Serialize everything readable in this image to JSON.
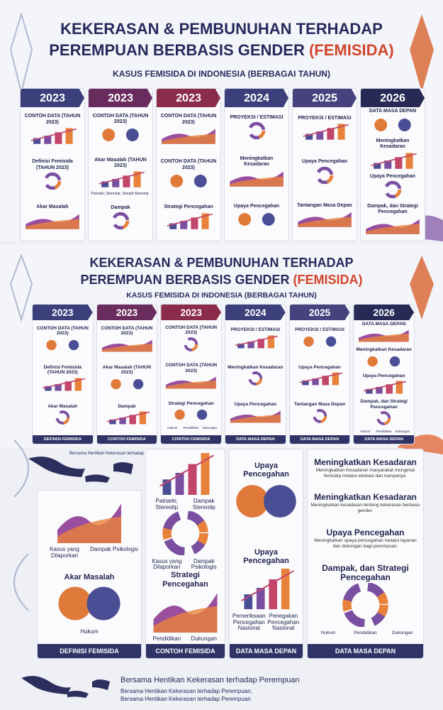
{
  "sections": [
    {
      "title_line1": "KEKERASAN & PEMBUNUHAN TERHADAP",
      "title_line2": "PEREMPUAN BERBASIS GENDER",
      "title_highlight": "(FEMISIDA)",
      "subtitle": "KASUS FEMISIDA DI INDONESIA (BERBAGAI TAHUN)",
      "columns": [
        {
          "year": "2023",
          "blocks": [
            {
              "heading": "CONTOH DATA (TAHUN 2023)"
            },
            {
              "heading": "Definisi Femisida (TAHUN 2023)"
            },
            {
              "heading": "Akar Masalah"
            }
          ]
        },
        {
          "year": "2023",
          "blocks": [
            {
              "heading": "CONTOH DATA (TAHUN 2023)"
            },
            {
              "heading": "Akar Masalah (TAHUN 2023)",
              "labels": [
                "Patriarki, Stereotip",
                "Sempit Stereotip"
              ]
            },
            {
              "heading": "Dampak"
            }
          ]
        },
        {
          "year": "2023",
          "blocks": [
            {
              "heading": "CONTOH DATA (TAHUN 2023)"
            },
            {
              "heading": "CONTOH DATA (TAHUN 2023)"
            },
            {
              "heading": "Strategi Pencegahan"
            }
          ]
        },
        {
          "year": "2024",
          "blocks": [
            {
              "heading": "PROYEKSI / ESTIMASI"
            },
            {
              "heading": "Meningkatkan Kesadaran"
            },
            {
              "heading": "Upaya Pencegahan"
            }
          ]
        },
        {
          "year": "2025",
          "blocks": [
            {
              "heading": "PROYEKSI / ESTIMASI"
            },
            {
              "heading": "Upaya Pencegahan"
            },
            {
              "heading": "Tantangan Masa Depan"
            }
          ]
        },
        {
          "year": "2026",
          "blocks": [
            {
              "heading": "DATA MASA DEPAN"
            },
            {
              "heading": "Meningkatkan Kesadaran"
            },
            {
              "heading": "Upaya Pencegahan"
            },
            {
              "heading": "Dampak, dan Strategi Pencegahan"
            }
          ]
        }
      ]
    },
    {
      "title_line1": "KEKERASAN & PEMBUNUHAN TERHADAP",
      "title_line2": "PEREMPUAN BERBASIS GENDER",
      "title_highlight": "(FEMISIDA)",
      "subtitle": "KASUS FEMISIDA DI INDONESIA (BERBAGAI TAHUN)",
      "columns": [
        {
          "year": "2023",
          "footer": "DEFINISI FEMISIDA",
          "blocks": [
            {
              "heading": "CONTOH DATA (TAHUN 2023)"
            },
            {
              "heading": "Definisi Femisida (TAHUN 2023)"
            },
            {
              "heading": "Akar Masalah"
            }
          ]
        },
        {
          "year": "2023",
          "footer": "CONTOH FEMISIDA",
          "blocks": [
            {
              "heading": "CONTOH DATA (TAHUN 2023)"
            },
            {
              "heading": "Akar Masalah (TAHUN 2023)"
            },
            {
              "heading": "Dampak"
            }
          ]
        },
        {
          "year": "2023",
          "footer": "CONTOH FEMISIDA",
          "blocks": [
            {
              "heading": "CONTOH DATA (TAHUN 2023)"
            },
            {
              "heading": "CONTOH DATA (TAHUN 2023)"
            },
            {
              "heading": "Strategi Pencegahan",
              "labels": [
                "Hukum",
                "Pendidikan",
                "Dukungan"
              ]
            }
          ]
        },
        {
          "year": "2024",
          "footer": "DATA MASA DEPAN",
          "blocks": [
            {
              "heading": "PROYEKSI / ESTIMASI"
            },
            {
              "heading": "Meningkatkan Kesadaran"
            },
            {
              "heading": "Upaya Pencegahan"
            }
          ]
        },
        {
          "year": "2025",
          "footer": "DATA MASA DEPAN",
          "blocks": [
            {
              "heading": "PROYEKSI / ESTIMASI"
            },
            {
              "heading": "Upaya Pencegahan"
            },
            {
              "heading": "Tantangan Masa Depan"
            }
          ]
        },
        {
          "year": "2026",
          "footer": "DATA MASA DEPAN",
          "blocks": [
            {
              "heading": "DATA MASA DEPAN"
            },
            {
              "heading": "Meningkatkan Kesadaran"
            },
            {
              "heading": "Upaya Pencegahan"
            },
            {
              "heading": "Dampak, dan Strategi Pencegahan",
              "labels": [
                "Hukum",
                "Pendidikan",
                "Dukungan"
              ]
            }
          ]
        }
      ]
    },
    {
      "map_caption": "Bersama Hentikan Kekerasan terhadap Perempuan",
      "columns": [
        {
          "footer": "DEFINISI FEMISIDA",
          "blocks": [
            {
              "labels": [
                "Kasus yang Dilaporkan",
                "Dampak Psikologis"
              ]
            },
            {
              "heading": "Akar Masalah",
              "labels": [
                "Hukum"
              ]
            }
          ]
        },
        {
          "footer": "CONTOH FEMISIDA",
          "blocks": [
            {
              "labels": [
                "Patriarki, Stereotip",
                "Dampak Stereotip"
              ]
            },
            {
              "labels": [
                "Kasus yang Dilaporkan",
                "Dampak Psikologis"
              ]
            },
            {
              "heading": "Strategi Pencegahan",
              "labels": [
                "Pendidikan",
                "Dukungan"
              ]
            }
          ]
        },
        {
          "footer": "DATA MASA DEPAN",
          "blocks": [
            {
              "heading": "Upaya Pencegahan"
            },
            {
              "heading": "Upaya Pencegahan",
              "labels": [
                "Pemeriksaan Pencegahan Nasional",
                "Penegakan Pencegahan Nasional"
              ]
            }
          ]
        },
        {
          "footer": "DATA MASA DEPAN",
          "blocks": [
            {
              "heading": "Meningkatkan Kesadaran",
              "text": "Meningkatkan Kesadaran masyarakat mengenai femisida melalui edukasi dan kampanye."
            },
            {
              "heading": "Meningkatkan Kesadaran",
              "text": "Meningkatkan kesadaran tentang kekerasan berbasis gender."
            },
            {
              "heading": "Upaya Pencegahan",
              "text": "Meningkatkan upaya pencegahan melalui layanan dan dukungan bagi perempuan."
            },
            {
              "heading": "Dampak, dan Strategi Pencegahan",
              "labels": [
                "Hukum",
                "Pendidikan",
                "Dukungan"
              ]
            }
          ]
        }
      ]
    }
  ],
  "footer": {
    "title": "Bersama Hentikan Kekerasan terhadap Perempuan",
    "line1": "Bersama Hentikan Kekerasan terhadap Perempuan,",
    "line2": "Bersama Hentikan Kekerasan terhadap Perempuan"
  }
}
